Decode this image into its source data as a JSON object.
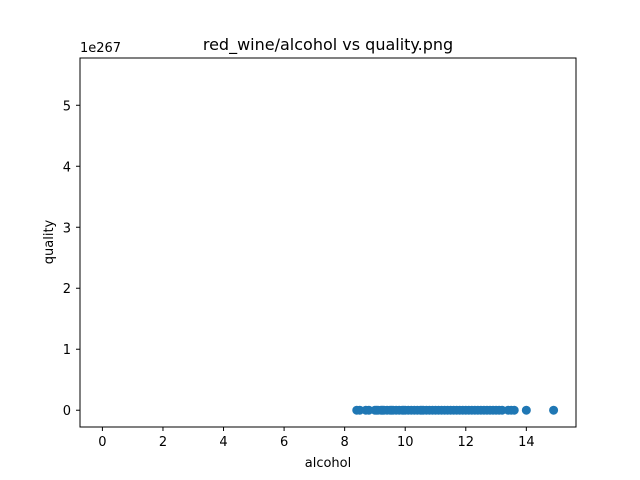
{
  "chart_data": {
    "type": "scatter",
    "title": "red_wine/alcohol vs quality.png",
    "xlabel": "alcohol",
    "ylabel": "quality",
    "y_offset_text": "1e267",
    "xlim": [
      -0.74,
      15.64
    ],
    "ylim": [
      -0.275,
      5.775
    ],
    "x_ticks": [
      0,
      2,
      4,
      6,
      8,
      10,
      12,
      14
    ],
    "y_ticks": [
      0,
      1,
      2,
      3,
      4,
      5
    ],
    "grid": false,
    "marker_color": "#1f77b4",
    "points": {
      "y": 0,
      "x": [
        8.4,
        8.5,
        8.7,
        8.8,
        9.0,
        9.05,
        9.1,
        9.2,
        9.25,
        9.3,
        9.4,
        9.5,
        9.55,
        9.6,
        9.7,
        9.8,
        9.9,
        9.95,
        10.0,
        10.1,
        10.2,
        10.3,
        10.4,
        10.5,
        10.55,
        10.6,
        10.7,
        10.8,
        10.9,
        11.0,
        11.1,
        11.2,
        11.3,
        11.4,
        11.5,
        11.6,
        11.7,
        11.8,
        11.9,
        12.0,
        12.1,
        12.2,
        12.3,
        12.4,
        12.5,
        12.6,
        12.7,
        12.8,
        12.9,
        13.0,
        13.1,
        13.2,
        13.4,
        13.5,
        13.6,
        14.0,
        14.9
      ]
    }
  }
}
